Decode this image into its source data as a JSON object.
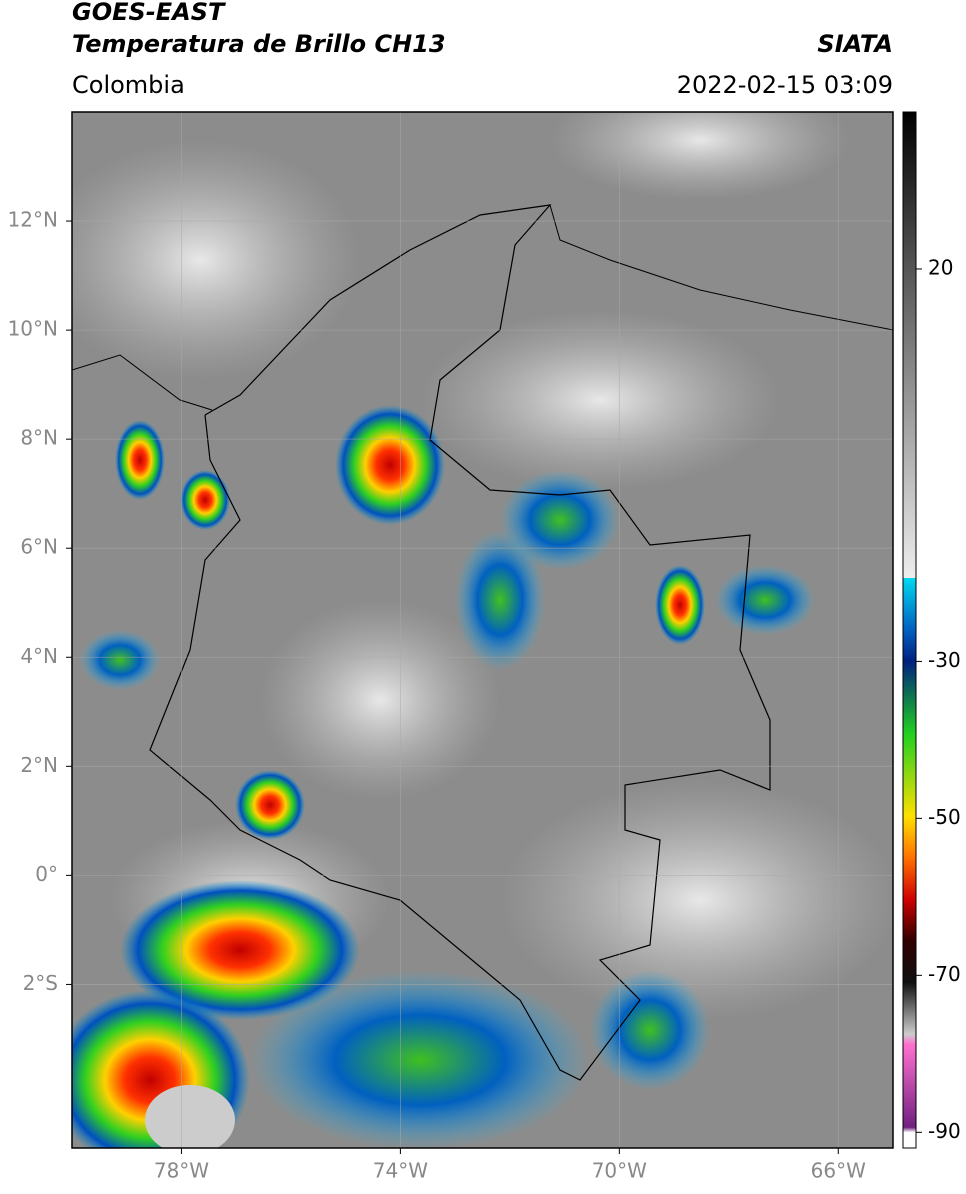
{
  "header": {
    "title": "GOES-EAST",
    "subtitle": "Temperatura de Brillo CH13",
    "region": "Colombia",
    "source": "SIATA",
    "timestamp": "2022-02-15 03:09"
  },
  "map": {
    "xlim": [
      -80,
      -65
    ],
    "ylim": [
      -5,
      14
    ],
    "xticks": [
      {
        "value": -78,
        "label": "78°W"
      },
      {
        "value": -74,
        "label": "74°W"
      },
      {
        "value": -70,
        "label": "70°W"
      },
      {
        "value": -66,
        "label": "66°W"
      }
    ],
    "yticks": [
      {
        "value": 12,
        "label": "12°N"
      },
      {
        "value": 10,
        "label": "10°N"
      },
      {
        "value": 8,
        "label": "8°N"
      },
      {
        "value": 6,
        "label": "6°N"
      },
      {
        "value": 4,
        "label": "4°N"
      },
      {
        "value": 2,
        "label": "2°N"
      },
      {
        "value": 0,
        "label": "0°"
      },
      {
        "value": -2,
        "label": "2°S"
      }
    ],
    "grid": true
  },
  "colorbar": {
    "lim": [
      -92,
      40
    ],
    "ticks": [
      20,
      -30,
      -50,
      -70,
      -90
    ]
  }
}
